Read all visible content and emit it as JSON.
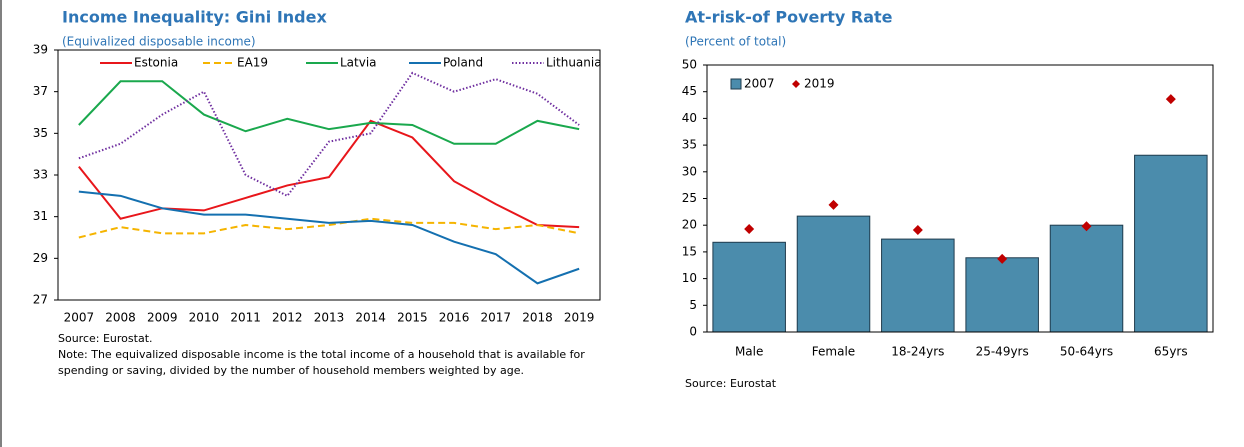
{
  "chart_data": [
    {
      "type": "line",
      "title": "Income Inequality: Gini Index",
      "subtitle": "(Equivalized disposable income)",
      "categories": [
        "2007",
        "2008",
        "2009",
        "2010",
        "2011",
        "2012",
        "2013",
        "2014",
        "2015",
        "2016",
        "2017",
        "2018",
        "2019"
      ],
      "series": [
        {
          "name": "Estonia",
          "color": "#e8161b",
          "dash": "solid",
          "values": [
            33.4,
            30.9,
            31.4,
            31.3,
            31.9,
            32.5,
            32.9,
            35.6,
            34.8,
            32.7,
            31.6,
            30.6,
            30.5
          ]
        },
        {
          "name": "EA19",
          "color": "#f5b400",
          "dash": "dashed",
          "values": [
            30.0,
            30.5,
            30.2,
            30.2,
            30.6,
            30.4,
            30.6,
            30.9,
            30.7,
            30.7,
            30.4,
            30.6,
            30.2
          ]
        },
        {
          "name": "Latvia",
          "color": "#1aa84d",
          "dash": "solid",
          "values": [
            35.4,
            37.5,
            37.5,
            35.9,
            35.1,
            35.7,
            35.2,
            35.5,
            35.4,
            34.5,
            34.5,
            35.6,
            35.2
          ]
        },
        {
          "name": "Poland",
          "color": "#1470b0",
          "dash": "solid",
          "values": [
            32.2,
            32.0,
            31.4,
            31.1,
            31.1,
            30.9,
            30.7,
            30.8,
            30.6,
            29.8,
            29.2,
            27.8,
            28.5
          ]
        },
        {
          "name": "Lithuania",
          "color": "#7030a0",
          "dash": "dotted",
          "values": [
            33.8,
            34.5,
            35.9,
            37.0,
            33.0,
            32.0,
            34.6,
            35.0,
            37.9,
            37.0,
            37.6,
            36.9,
            35.4
          ]
        }
      ],
      "ylim": [
        27,
        39
      ],
      "yticks": [
        27,
        29,
        31,
        33,
        35,
        37,
        39
      ],
      "legend": "top",
      "source": "Source: Eurostat.",
      "note": "Note: The equivalized disposable income is the total income of a household that is available for spending or saving, divided by the number of household members weighted by age."
    },
    {
      "type": "bar",
      "title": "At-risk-of Poverty Rate",
      "subtitle": "(Percent of total)",
      "categories": [
        "Male",
        "Female",
        "18-24yrs",
        "25-49yrs",
        "50-64yrs",
        "65yrs"
      ],
      "series": [
        {
          "name": "2007",
          "type": "bar",
          "color": "#4b8cac",
          "values": [
            16.8,
            21.7,
            17.4,
            13.9,
            20.0,
            33.1
          ]
        },
        {
          "name": "2019",
          "type": "marker",
          "color": "#c00000",
          "values": [
            19.3,
            23.8,
            19.1,
            13.7,
            19.8,
            43.6
          ]
        }
      ],
      "ylim": [
        0,
        50
      ],
      "yticks": [
        0,
        5,
        10,
        15,
        20,
        25,
        30,
        35,
        40,
        45,
        50
      ],
      "legend": "top left",
      "source": "Source: Eurostat"
    }
  ]
}
